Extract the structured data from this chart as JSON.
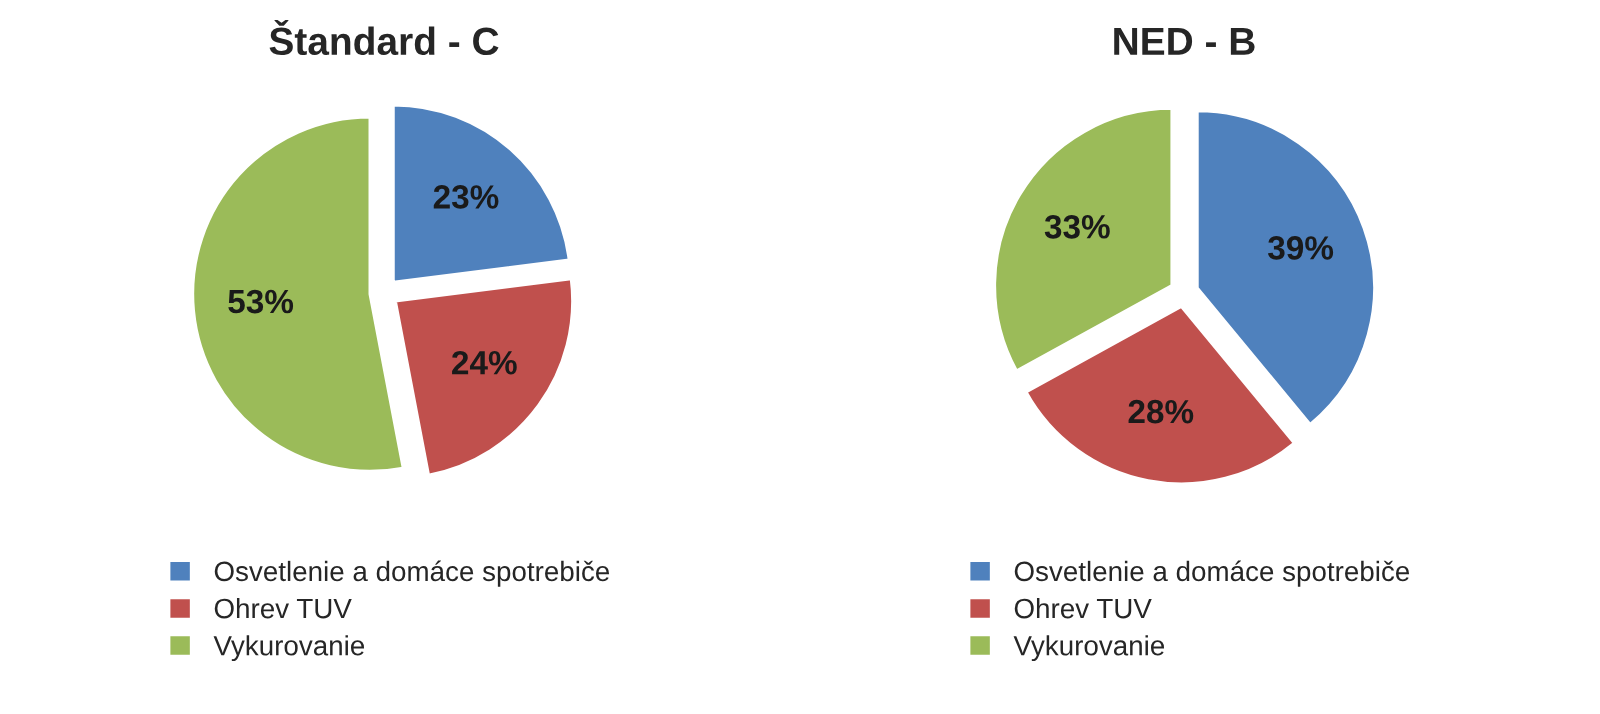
{
  "chart_data": [
    {
      "type": "pie",
      "title": "Štandard - C",
      "categories": [
        "Osvetlenie a domáce spotrebiče",
        "Ohrev TUV",
        "Vykurovanie"
      ],
      "values": [
        23,
        24,
        53
      ],
      "colors": [
        "#4f81bd",
        "#c0504d",
        "#9bbb59"
      ],
      "value_labels": [
        "23%",
        "24%",
        "53%"
      ],
      "legend": "bottom"
    },
    {
      "type": "pie",
      "title": "NED - B",
      "categories": [
        "Osvetlenie a domáce spotrebiče",
        "Ohrev TUV",
        "Vykurovanie"
      ],
      "values": [
        39,
        28,
        33
      ],
      "colors": [
        "#4f81bd",
        "#c0504d",
        "#9bbb59"
      ],
      "value_labels": [
        "39%",
        "28%",
        "33%"
      ],
      "legend": "bottom"
    }
  ]
}
